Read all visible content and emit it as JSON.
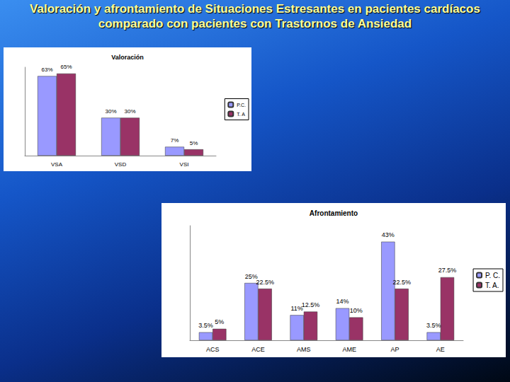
{
  "title": "Valoración y afrontamiento de Situaciones Estresantes en pacientes cardíacos comparado con pacientes con Trastornos de Ansiedad",
  "chart_data": [
    {
      "type": "bar",
      "title": "Valoración",
      "categories": [
        "VSA",
        "VSD",
        "VSI"
      ],
      "series": [
        {
          "name": "P.C.",
          "color": "#9999ff",
          "values": [
            63,
            30,
            7
          ],
          "value_labels": [
            "63%",
            "30%",
            "7%"
          ]
        },
        {
          "name": "T. A",
          "color": "#993366",
          "values": [
            65,
            30,
            5
          ],
          "value_labels": [
            "65%",
            "30%",
            "5%"
          ]
        }
      ],
      "ylim": [
        0,
        70
      ],
      "grid": false,
      "legend": "right",
      "data_labels": true,
      "tick_labels": "x"
    },
    {
      "type": "bar",
      "title": "Afrontamiento",
      "categories": [
        "ACS",
        "ACE",
        "AMS",
        "AME",
        "AP",
        "AE"
      ],
      "series": [
        {
          "name": "P. C.",
          "color": "#9999ff",
          "values": [
            3.5,
            25,
            11,
            14,
            43,
            3.5
          ],
          "value_labels": [
            "3.5%",
            "25%",
            "11%",
            "14%",
            "43%",
            "3.5%"
          ]
        },
        {
          "name": "T. A.",
          "color": "#993366",
          "values": [
            5,
            22.5,
            12.5,
            10,
            22.5,
            27.5
          ],
          "value_labels": [
            "5%",
            "22.5%",
            "12.5%",
            "10%",
            "22.5%",
            "27.5%"
          ]
        }
      ],
      "ylim": [
        0,
        50
      ],
      "grid": false,
      "legend": "right",
      "data_labels": true,
      "tick_labels": "x"
    }
  ]
}
